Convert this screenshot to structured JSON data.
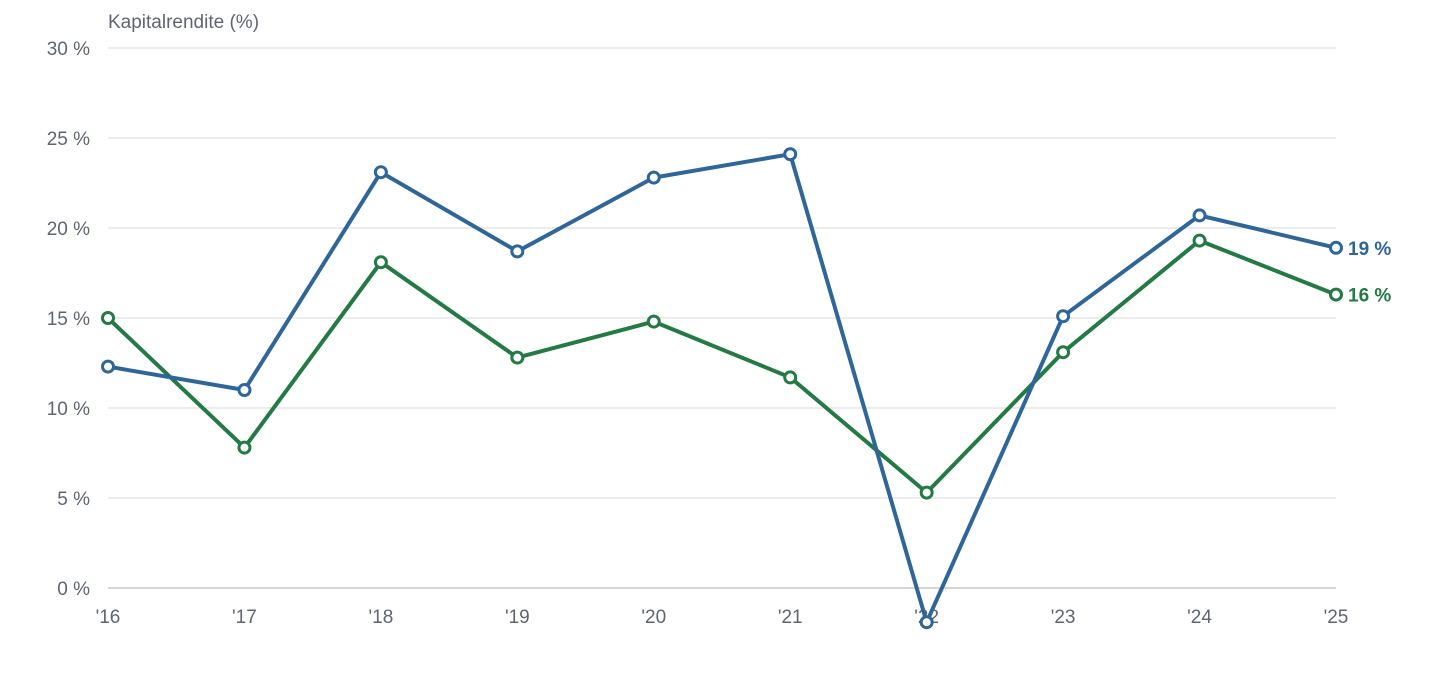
{
  "chart_data": {
    "type": "line",
    "ylabel": "Kapitalrendite (%)",
    "x": [
      "'16",
      "'17",
      "'18",
      "'19",
      "'20",
      "'21",
      "'22",
      "'23",
      "'24",
      "'25"
    ],
    "y_ticks": [
      {
        "value": 0,
        "label": "0 %"
      },
      {
        "value": 5,
        "label": "5 %"
      },
      {
        "value": 10,
        "label": "10 %"
      },
      {
        "value": 15,
        "label": "15 %"
      },
      {
        "value": 20,
        "label": "20 %"
      },
      {
        "value": 25,
        "label": "25 %"
      },
      {
        "value": 30,
        "label": "30 %"
      }
    ],
    "ylim": [
      0,
      30
    ],
    "grid": true,
    "series": [
      {
        "color": "#2f6699",
        "values": [
          12.3,
          11.0,
          23.1,
          18.7,
          22.8,
          24.1,
          -1.9,
          15.1,
          20.7,
          18.9
        ],
        "end_label": "19 %"
      },
      {
        "color": "#237a44",
        "values": [
          15.0,
          7.8,
          18.1,
          12.8,
          14.8,
          11.7,
          5.3,
          13.1,
          19.3,
          16.3
        ],
        "end_label": "16 %"
      }
    ]
  }
}
